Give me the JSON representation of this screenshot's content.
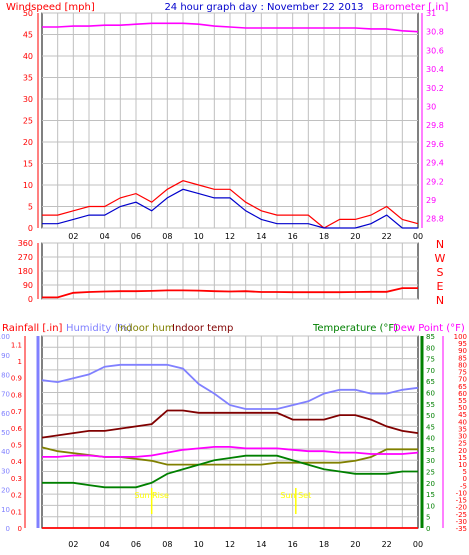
{
  "header": {
    "left_label": "Windspeed [mph]",
    "center_title": "24 hour graph day : November 22 2013",
    "right_label": "Barometer [.in]"
  },
  "colors": {
    "red": "#ff0000",
    "magenta": "#ff00ff",
    "navy": "#0000cc",
    "purple_blue": "#8080ff",
    "olive": "#808000",
    "maroon": "#800000",
    "green": "#008000",
    "yellow": "#ffff00",
    "grid": "#c0c0c0"
  },
  "x_ticks": [
    "02",
    "04",
    "06",
    "08",
    "10",
    "12",
    "14",
    "16",
    "18",
    "20",
    "22",
    "00"
  ],
  "wind_panel": {
    "y_ticks": [
      "50",
      "45",
      "40",
      "35",
      "30",
      "25",
      "20",
      "15",
      "10",
      "5",
      "0"
    ],
    "baro_ticks": [
      "31",
      "30.8",
      "30.6",
      "30.4",
      "30.2",
      "30",
      "29.8",
      "29.6",
      "29.4",
      "29.2",
      "29",
      "28.8"
    ]
  },
  "direction_panel": {
    "y_ticks": [
      "360",
      "270",
      "180",
      "90",
      "0"
    ],
    "compass_labels": [
      "N",
      "W",
      "S",
      "E",
      "N"
    ]
  },
  "bottom_panel": {
    "legend": {
      "rainfall": "Rainfall [.in]",
      "humidity": "Humidity (%)",
      "indoor_hum": "Indoor hum",
      "indoor_temp": "Indoor temp",
      "temperature": "Temperature (°F)",
      "dew_point": "Dew Point (°F)"
    },
    "rain_ticks": [
      "1.1",
      "1",
      "0.9",
      "0.8",
      "0.7",
      "0.6",
      "0.5",
      "0.4",
      "0.3",
      "0.2",
      "0.1",
      "0"
    ],
    "humidity_ticks": [
      "100",
      "90",
      "80",
      "70",
      "60",
      "50",
      "40",
      "30",
      "20",
      "10",
      "0"
    ],
    "temp_ticks": [
      "85",
      "80",
      "75",
      "70",
      "65",
      "60",
      "55",
      "50",
      "45",
      "40",
      "35",
      "30",
      "25",
      "20",
      "15",
      "10",
      "5",
      "0"
    ],
    "dew_ticks": [
      "100",
      "95",
      "90",
      "85",
      "80",
      "75",
      "70",
      "65",
      "60",
      "55",
      "50",
      "45",
      "40",
      "35",
      "30",
      "25",
      "20",
      "15",
      "10",
      "5",
      "0",
      "-5",
      "-10",
      "-15",
      "-20",
      "-25",
      "-30",
      "-35"
    ],
    "sun_labels": [
      "Sun Rise",
      "Sun Set"
    ]
  },
  "chart_data": [
    {
      "type": "line",
      "title": "24 hour graph day : November 22 2013",
      "x": [
        0,
        1,
        2,
        3,
        4,
        5,
        6,
        7,
        8,
        9,
        10,
        11,
        12,
        13,
        14,
        15,
        16,
        17,
        18,
        19,
        20,
        21,
        22,
        23,
        24
      ],
      "ylim_left": [
        0,
        50
      ],
      "ylim_right": [
        28.7,
        31
      ],
      "series": [
        {
          "name": "Windspeed [mph]",
          "axis": "left",
          "values": [
            3,
            3,
            4,
            5,
            5,
            7,
            8,
            6,
            9,
            11,
            10,
            9,
            9,
            6,
            4,
            3,
            3,
            3,
            0,
            2,
            2,
            3,
            5,
            2,
            1
          ]
        },
        {
          "name": "Barometer [.in]",
          "axis": "right",
          "values": [
            30.85,
            30.85,
            30.86,
            30.86,
            30.87,
            30.87,
            30.88,
            30.89,
            30.89,
            30.89,
            30.88,
            30.86,
            30.85,
            30.84,
            30.84,
            30.84,
            30.84,
            30.84,
            30.84,
            30.84,
            30.84,
            30.83,
            30.83,
            30.81,
            30.8
          ]
        }
      ]
    },
    {
      "type": "line",
      "x": [
        0,
        1,
        2,
        3,
        4,
        5,
        6,
        7,
        8,
        9,
        10,
        11,
        12,
        13,
        14,
        15,
        16,
        17,
        18,
        19,
        20,
        21,
        22,
        23,
        24
      ],
      "ylim": [
        0,
        360
      ],
      "series": [
        {
          "name": "Wind direction",
          "values": [
            10,
            10,
            40,
            45,
            48,
            50,
            50,
            52,
            55,
            55,
            54,
            50,
            48,
            50,
            45,
            45,
            44,
            44,
            44,
            44,
            45,
            46,
            46,
            70,
            70
          ]
        }
      ]
    },
    {
      "type": "line",
      "x": [
        0,
        1,
        2,
        3,
        4,
        5,
        6,
        7,
        8,
        9,
        10,
        11,
        12,
        13,
        14,
        15,
        16,
        17,
        18,
        19,
        20,
        21,
        22,
        23,
        24
      ],
      "series": [
        {
          "name": "Humidity (%)",
          "axis": "humidity",
          "ylim": [
            0,
            100
          ],
          "values": [
            77,
            76,
            78,
            80,
            84,
            85,
            85,
            85,
            85,
            83,
            75,
            70,
            64,
            62,
            62,
            62,
            64,
            66,
            70,
            72,
            72,
            70,
            70,
            72,
            73
          ]
        },
        {
          "name": "Indoor hum",
          "axis": "humidity",
          "ylim": [
            0,
            100
          ],
          "values": [
            42,
            40,
            39,
            38,
            37,
            37,
            36,
            35,
            33,
            33,
            33,
            33,
            33,
            33,
            33,
            34,
            34,
            34,
            34,
            34,
            35,
            37,
            41,
            41,
            41
          ]
        },
        {
          "name": "Indoor temp",
          "axis": "temperature",
          "ylim": [
            0,
            85
          ],
          "values": [
            40,
            41,
            42,
            43,
            43,
            44,
            45,
            46,
            52,
            52,
            51,
            51,
            51,
            51,
            51,
            51,
            48,
            48,
            48,
            50,
            50,
            48,
            45,
            43,
            42
          ]
        },
        {
          "name": "Temperature (°F)",
          "axis": "temperature",
          "ylim": [
            0,
            85
          ],
          "values": [
            20,
            20,
            20,
            19,
            18,
            18,
            18,
            20,
            24,
            26,
            28,
            30,
            31,
            32,
            32,
            32,
            30,
            28,
            26,
            25,
            24,
            24,
            24,
            25,
            25
          ]
        },
        {
          "name": "Dew Point (°F)",
          "axis": "dew_point",
          "ylim": [
            -35,
            100
          ],
          "values": [
            15,
            15,
            16,
            16,
            15,
            15,
            15,
            16,
            18,
            20,
            21,
            22,
            22,
            21,
            21,
            21,
            20,
            19,
            19,
            18,
            18,
            17,
            17,
            17,
            18
          ]
        },
        {
          "name": "Rainfall [.in]",
          "axis": "rainfall",
          "ylim": [
            0,
            1.15
          ],
          "values": [
            0,
            0,
            0,
            0,
            0,
            0,
            0,
            0,
            0,
            0,
            0,
            0,
            0,
            0,
            0,
            0,
            0,
            0,
            0,
            0,
            0,
            0,
            0,
            0,
            0
          ]
        }
      ],
      "annotations": [
        "Sun Rise",
        "Sun Set"
      ]
    }
  ]
}
